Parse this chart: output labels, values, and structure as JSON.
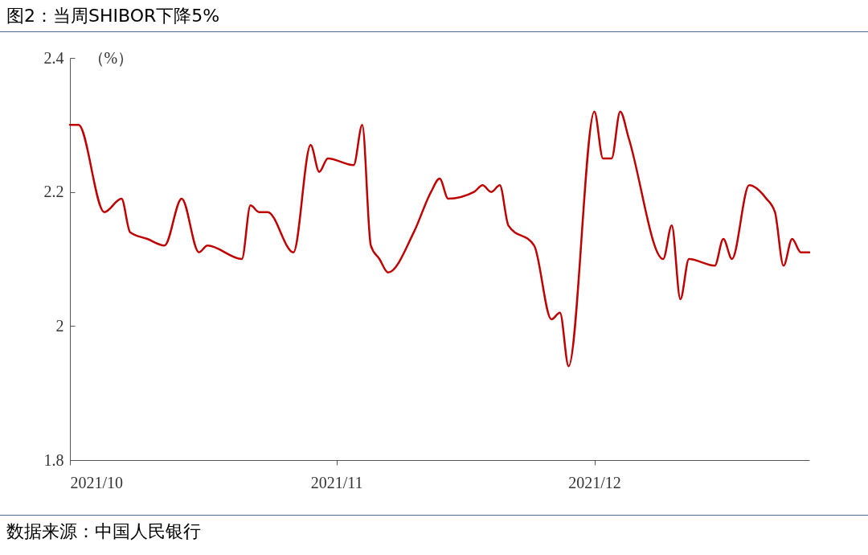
{
  "chart_data": {
    "type": "line",
    "title": "图2：当周SHIBOR下降5%",
    "ylabel": "（%）",
    "annotations": [
      "数据来源：中国人民银行"
    ],
    "x": [
      "2021-10-01",
      "2021-10-02",
      "2021-10-05",
      "2021-10-07",
      "2021-10-08",
      "2021-10-10",
      "2021-10-12",
      "2021-10-14",
      "2021-10-16",
      "2021-10-17",
      "2021-10-21",
      "2021-10-22",
      "2021-10-23",
      "2021-10-24",
      "2021-10-27",
      "2021-10-29",
      "2021-10-30",
      "2021-10-31",
      "2021-11-03",
      "2021-11-04",
      "2021-11-05",
      "2021-11-06",
      "2021-11-07",
      "2021-11-10",
      "2021-11-12",
      "2021-11-13",
      "2021-11-14",
      "2021-11-17",
      "2021-11-18",
      "2021-11-19",
      "2021-11-20",
      "2021-11-21",
      "2021-11-24",
      "2021-11-26",
      "2021-11-27",
      "2021-11-28",
      "2021-12-01",
      "2021-12-02",
      "2021-12-03",
      "2021-12-04",
      "2021-12-05",
      "2021-12-09",
      "2021-12-10",
      "2021-12-11",
      "2021-12-12",
      "2021-12-15",
      "2021-12-16",
      "2021-12-17",
      "2021-12-19",
      "2021-12-21",
      "2021-12-22",
      "2021-12-23",
      "2021-12-24",
      "2021-12-25",
      "2021-12-26"
    ],
    "series": [
      {
        "color": "#c00000",
        "values": [
          2.3,
          2.3,
          2.17,
          2.19,
          2.14,
          2.13,
          2.12,
          2.19,
          2.11,
          2.12,
          2.1,
          2.18,
          2.17,
          2.17,
          2.11,
          2.27,
          2.23,
          2.25,
          2.24,
          2.3,
          2.12,
          2.1,
          2.08,
          2.14,
          2.2,
          2.22,
          2.19,
          2.2,
          2.21,
          2.2,
          2.21,
          2.15,
          2.12,
          2.01,
          2.02,
          1.94,
          2.32,
          2.25,
          2.25,
          2.32,
          2.28,
          2.1,
          2.15,
          2.04,
          2.1,
          2.09,
          2.13,
          2.1,
          2.21,
          2.19,
          2.17,
          2.09,
          2.13,
          2.11,
          2.11
        ]
      }
    ],
    "xlim": [
      "2021-10-01",
      "2021-12-26"
    ],
    "xticks": [
      {
        "value": "2021-10-01",
        "label": "2021/10"
      },
      {
        "value": "2021-11-01",
        "label": "2021/11"
      },
      {
        "value": "2021-12-01",
        "label": "2021/12"
      }
    ],
    "ylim": [
      1.8,
      2.4
    ],
    "yticks": [
      1.8,
      2,
      2.2,
      2.4
    ],
    "grid": false,
    "marker": "none",
    "line_style": "solid"
  }
}
